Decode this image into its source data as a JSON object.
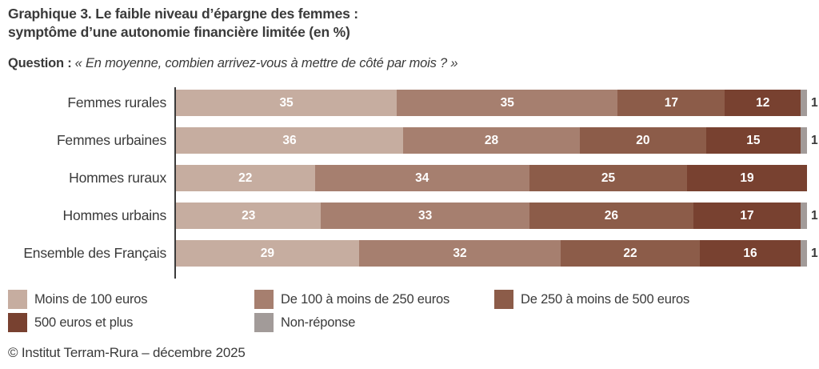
{
  "title": {
    "line1_prefix": "Graphique 3.",
    "line1_rest": " Le faible niveau d’épargne des femmes :",
    "line2": "symptôme d’une autonomie financière limitée (en %)"
  },
  "question": {
    "label": "Question :",
    "text": "« En moyenne, combien arrivez-vous à mettre de côté par mois ? »"
  },
  "chart_data": {
    "type": "bar",
    "orientation": "horizontal",
    "stacked": true,
    "unit": "%",
    "xlim": [
      0,
      100
    ],
    "grid": false,
    "legend_position": "bottom",
    "value_labels": "inside-white",
    "categories": [
      "Femmes rurales",
      "Femmes urbaines",
      "Hommes ruraux",
      "Hommes urbains",
      "Ensemble des Français"
    ],
    "series": [
      {
        "name": "Moins de 100 euros",
        "color": "#c6ada0",
        "values": [
          35,
          36,
          22,
          23,
          29
        ]
      },
      {
        "name": "De 100 à moins de 250 euros",
        "color": "#a67f6f",
        "values": [
          35,
          28,
          34,
          33,
          32
        ]
      },
      {
        "name": "De 250 à moins de 500 euros",
        "color": "#8c5c49",
        "values": [
          17,
          20,
          25,
          26,
          22
        ]
      },
      {
        "name": "500 euros et plus",
        "color": "#784130",
        "values": [
          12,
          15,
          19,
          17,
          16
        ]
      },
      {
        "name": "Non-réponse",
        "color": "#a29b99",
        "values": [
          1,
          1,
          0,
          1,
          1
        ]
      }
    ]
  },
  "footer": "© Institut Terram-Rura – décembre 2025",
  "colors": {
    "text": "#3a3a3a",
    "background": "#ffffff"
  }
}
